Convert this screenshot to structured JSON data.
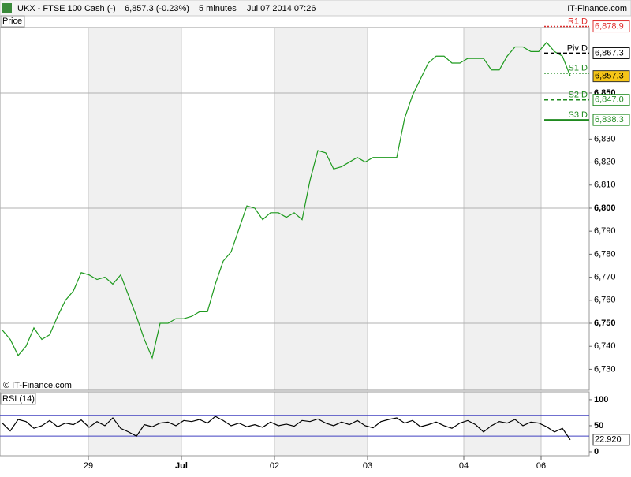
{
  "header": {
    "symbol": "UKX - FTSE 100 Cash (-)",
    "quote": "6,857.3 (-0.23%)",
    "interval": "5 minutes",
    "datetime": "Jul 07 2014 07:26",
    "brand": "IT-Finance.com"
  },
  "chart_data": [
    {
      "type": "line",
      "panel_label": "Price",
      "watermark": "© IT-Finance.com",
      "x": [
        0,
        1,
        2,
        3,
        4,
        5,
        6,
        7,
        8,
        9,
        10,
        11,
        12,
        13,
        14,
        15,
        16,
        17,
        18,
        19,
        20,
        21,
        22,
        23,
        24,
        25,
        26,
        27,
        28,
        29,
        30,
        31,
        32,
        33,
        34,
        35,
        36,
        37,
        38,
        39,
        40,
        41,
        42,
        43,
        44,
        45,
        46,
        47,
        48,
        49,
        50,
        51,
        52,
        53,
        54,
        55,
        56,
        57,
        58,
        59,
        60,
        61,
        62,
        63,
        64,
        65,
        66,
        67,
        68,
        69,
        70,
        71,
        72
      ],
      "series": [
        {
          "color": "#1f9a1f",
          "values": [
            6747,
            6743,
            6736,
            6740,
            6748,
            6743,
            6745,
            6753,
            6760,
            6764,
            6772,
            6771,
            6769,
            6770,
            6767,
            6771,
            6762,
            6753,
            6743,
            6735,
            6750,
            6750,
            6752,
            6752,
            6753,
            6755,
            6755,
            6767,
            6777,
            6781,
            6791,
            6801,
            6800,
            6795,
            6798,
            6798,
            6796,
            6798,
            6795,
            6812,
            6825,
            6824,
            6817,
            6818,
            6820,
            6822,
            6820,
            6822,
            6822,
            6822,
            6822,
            6839,
            6849,
            6856,
            6863,
            6866,
            6866,
            6863,
            6863,
            6865,
            6865,
            6865,
            6860,
            6860,
            6866,
            6870,
            6870,
            6868,
            6868,
            6872,
            6868,
            6866,
            6857.3
          ]
        }
      ],
      "xlim": [
        -0.3,
        74.4
      ],
      "xticks": [
        {
          "value": 10.9,
          "label": "29"
        },
        {
          "value": 22.7,
          "label": "Jul"
        },
        {
          "value": 34.5,
          "label": "02"
        },
        {
          "value": 46.3,
          "label": "03"
        },
        {
          "value": 58.5,
          "label": "04"
        },
        {
          "value": 68.3,
          "label": "06"
        }
      ],
      "ylim": [
        6720.9,
        6878.4
      ],
      "yticks": [
        {
          "value": 6730,
          "label": "6,730"
        },
        {
          "value": 6740,
          "label": "6,740"
        },
        {
          "value": 6750,
          "label": "6,750",
          "major": true
        },
        {
          "value": 6760,
          "label": "6,760"
        },
        {
          "value": 6770,
          "label": "6,770"
        },
        {
          "value": 6780,
          "label": "6,780"
        },
        {
          "value": 6790,
          "label": "6,790"
        },
        {
          "value": 6800,
          "label": "6,800",
          "major": true
        },
        {
          "value": 6810,
          "label": "6,810"
        },
        {
          "value": 6820,
          "label": "6,820"
        },
        {
          "value": 6830,
          "label": "6,830"
        },
        {
          "value": 6850,
          "label": "6,850",
          "major": true
        }
      ],
      "levels": [
        {
          "name": "R1 D",
          "value": 6878.9,
          "label": "6,878.9",
          "color": "#e03030",
          "style": "dotted"
        },
        {
          "name": "Piv D",
          "value": 6867.3,
          "label": "6,867.3",
          "color": "#000000",
          "style": "dashed"
        },
        {
          "name": "S1 D",
          "value": 6858.6,
          "color": "#1f8a1f",
          "style": "dotted"
        },
        {
          "name": "S2 D",
          "value": 6847.0,
          "label": "6,847.0",
          "color": "#1f8a1f",
          "style": "dashed"
        },
        {
          "name": "S3 D",
          "value": 6838.3,
          "label": "6,838.3",
          "color": "#1f8a1f",
          "style": "solid"
        }
      ],
      "last": {
        "value": 6857.3,
        "label": "6,857.3",
        "color": "#f5c518"
      }
    },
    {
      "type": "line",
      "panel_label": "RSI (14)",
      "series": [
        {
          "color": "#000000",
          "values": [
            55,
            40,
            62,
            58,
            45,
            50,
            60,
            48,
            55,
            52,
            61,
            47,
            58,
            50,
            65,
            45,
            38,
            30,
            52,
            48,
            55,
            57,
            50,
            60,
            58,
            62,
            55,
            68,
            60,
            50,
            55,
            48,
            52,
            47,
            57,
            50,
            53,
            49,
            60,
            58,
            63,
            55,
            50,
            57,
            52,
            60,
            50,
            46,
            58,
            62,
            65,
            55,
            60,
            48,
            52,
            57,
            50,
            45,
            55,
            60,
            52,
            38,
            50,
            58,
            55,
            62,
            50,
            57,
            55,
            48,
            38,
            45,
            22.92
          ]
        }
      ],
      "ylim": [
        -7.6,
        115
      ],
      "yticks": [
        0,
        50,
        100
      ],
      "bands": [
        {
          "value": 70,
          "color": "#4040c0"
        },
        {
          "value": 30,
          "color": "#4040c0"
        }
      ],
      "last": {
        "value": 22.92,
        "label": "22.920"
      }
    }
  ]
}
